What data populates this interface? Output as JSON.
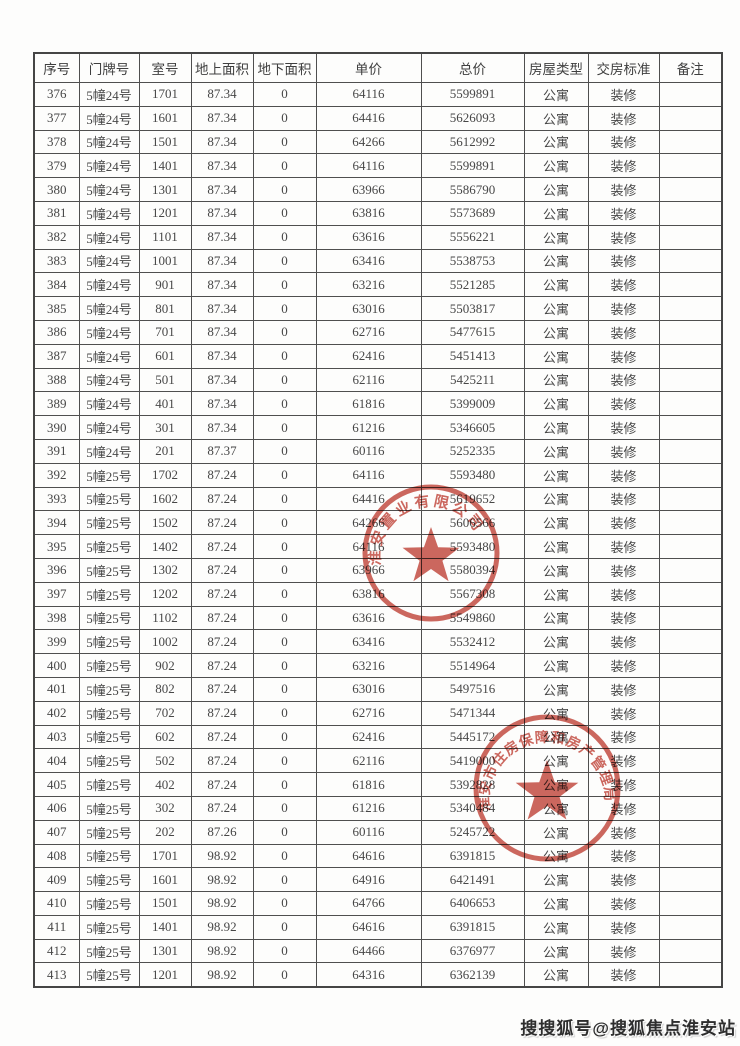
{
  "table": {
    "headers": [
      "序号",
      "门牌号",
      "室号",
      "地上面积",
      "地下面积",
      "单价",
      "总价",
      "房屋类型",
      "交房标准",
      "备注"
    ],
    "rows": [
      [
        "376",
        "5幢24号",
        "1701",
        "87.34",
        "0",
        "64116",
        "5599891",
        "公寓",
        "装修",
        ""
      ],
      [
        "377",
        "5幢24号",
        "1601",
        "87.34",
        "0",
        "64416",
        "5626093",
        "公寓",
        "装修",
        ""
      ],
      [
        "378",
        "5幢24号",
        "1501",
        "87.34",
        "0",
        "64266",
        "5612992",
        "公寓",
        "装修",
        ""
      ],
      [
        "379",
        "5幢24号",
        "1401",
        "87.34",
        "0",
        "64116",
        "5599891",
        "公寓",
        "装修",
        ""
      ],
      [
        "380",
        "5幢24号",
        "1301",
        "87.34",
        "0",
        "63966",
        "5586790",
        "公寓",
        "装修",
        ""
      ],
      [
        "381",
        "5幢24号",
        "1201",
        "87.34",
        "0",
        "63816",
        "5573689",
        "公寓",
        "装修",
        ""
      ],
      [
        "382",
        "5幢24号",
        "1101",
        "87.34",
        "0",
        "63616",
        "5556221",
        "公寓",
        "装修",
        ""
      ],
      [
        "383",
        "5幢24号",
        "1001",
        "87.34",
        "0",
        "63416",
        "5538753",
        "公寓",
        "装修",
        ""
      ],
      [
        "384",
        "5幢24号",
        "901",
        "87.34",
        "0",
        "63216",
        "5521285",
        "公寓",
        "装修",
        ""
      ],
      [
        "385",
        "5幢24号",
        "801",
        "87.34",
        "0",
        "63016",
        "5503817",
        "公寓",
        "装修",
        ""
      ],
      [
        "386",
        "5幢24号",
        "701",
        "87.34",
        "0",
        "62716",
        "5477615",
        "公寓",
        "装修",
        ""
      ],
      [
        "387",
        "5幢24号",
        "601",
        "87.34",
        "0",
        "62416",
        "5451413",
        "公寓",
        "装修",
        ""
      ],
      [
        "388",
        "5幢24号",
        "501",
        "87.34",
        "0",
        "62116",
        "5425211",
        "公寓",
        "装修",
        ""
      ],
      [
        "389",
        "5幢24号",
        "401",
        "87.34",
        "0",
        "61816",
        "5399009",
        "公寓",
        "装修",
        ""
      ],
      [
        "390",
        "5幢24号",
        "301",
        "87.34",
        "0",
        "61216",
        "5346605",
        "公寓",
        "装修",
        ""
      ],
      [
        "391",
        "5幢24号",
        "201",
        "87.37",
        "0",
        "60116",
        "5252335",
        "公寓",
        "装修",
        ""
      ],
      [
        "392",
        "5幢25号",
        "1702",
        "87.24",
        "0",
        "64116",
        "5593480",
        "公寓",
        "装修",
        ""
      ],
      [
        "393",
        "5幢25号",
        "1602",
        "87.24",
        "0",
        "64416",
        "5619652",
        "公寓",
        "装修",
        ""
      ],
      [
        "394",
        "5幢25号",
        "1502",
        "87.24",
        "0",
        "64266",
        "5606566",
        "公寓",
        "装修",
        ""
      ],
      [
        "395",
        "5幢25号",
        "1402",
        "87.24",
        "0",
        "64116",
        "5593480",
        "公寓",
        "装修",
        ""
      ],
      [
        "396",
        "5幢25号",
        "1302",
        "87.24",
        "0",
        "63966",
        "5580394",
        "公寓",
        "装修",
        ""
      ],
      [
        "397",
        "5幢25号",
        "1202",
        "87.24",
        "0",
        "63816",
        "5567308",
        "公寓",
        "装修",
        ""
      ],
      [
        "398",
        "5幢25号",
        "1102",
        "87.24",
        "0",
        "63616",
        "5549860",
        "公寓",
        "装修",
        ""
      ],
      [
        "399",
        "5幢25号",
        "1002",
        "87.24",
        "0",
        "63416",
        "5532412",
        "公寓",
        "装修",
        ""
      ],
      [
        "400",
        "5幢25号",
        "902",
        "87.24",
        "0",
        "63216",
        "5514964",
        "公寓",
        "装修",
        ""
      ],
      [
        "401",
        "5幢25号",
        "802",
        "87.24",
        "0",
        "63016",
        "5497516",
        "公寓",
        "装修",
        ""
      ],
      [
        "402",
        "5幢25号",
        "702",
        "87.24",
        "0",
        "62716",
        "5471344",
        "公寓",
        "装修",
        ""
      ],
      [
        "403",
        "5幢25号",
        "602",
        "87.24",
        "0",
        "62416",
        "5445172",
        "公寓",
        "装修",
        ""
      ],
      [
        "404",
        "5幢25号",
        "502",
        "87.24",
        "0",
        "62116",
        "5419000",
        "公寓",
        "装修",
        ""
      ],
      [
        "405",
        "5幢25号",
        "402",
        "87.24",
        "0",
        "61816",
        "5392828",
        "公寓",
        "装修",
        ""
      ],
      [
        "406",
        "5幢25号",
        "302",
        "87.24",
        "0",
        "61216",
        "5340484",
        "公寓",
        "装修",
        ""
      ],
      [
        "407",
        "5幢25号",
        "202",
        "87.26",
        "0",
        "60116",
        "5245722",
        "公寓",
        "装修",
        ""
      ],
      [
        "408",
        "5幢25号",
        "1701",
        "98.92",
        "0",
        "64616",
        "6391815",
        "公寓",
        "装修",
        ""
      ],
      [
        "409",
        "5幢25号",
        "1601",
        "98.92",
        "0",
        "64916",
        "6421491",
        "公寓",
        "装修",
        ""
      ],
      [
        "410",
        "5幢25号",
        "1501",
        "98.92",
        "0",
        "64766",
        "6406653",
        "公寓",
        "装修",
        ""
      ],
      [
        "411",
        "5幢25号",
        "1401",
        "98.92",
        "0",
        "64616",
        "6391815",
        "公寓",
        "装修",
        ""
      ],
      [
        "412",
        "5幢25号",
        "1301",
        "98.92",
        "0",
        "64466",
        "6376977",
        "公寓",
        "装修",
        ""
      ],
      [
        "413",
        "5幢25号",
        "1201",
        "98.92",
        "0",
        "64316",
        "6362139",
        "公寓",
        "装修",
        ""
      ]
    ]
  },
  "stamps": [
    {
      "arc_text": "淮安置业有限公司",
      "color": "#c2473c"
    },
    {
      "arc_text": "淮安市住房保障和房产管理局",
      "color": "#c2473c"
    }
  ],
  "watermark": "搜搜狐号@搜狐焦点淮安站",
  "colors": {
    "stamp_red": "#c2473c",
    "table_text": "#474747",
    "table_border": "#4f4f4f"
  }
}
